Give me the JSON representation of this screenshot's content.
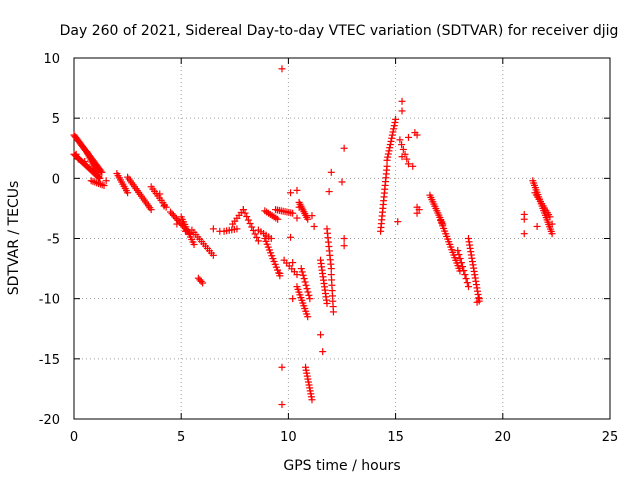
{
  "chart_data": {
    "type": "scatter",
    "title": "Day 260 of 2021, Sidereal Day-to-day VTEC variation (SDTVAR) for receiver djig",
    "xlabel": "GPS time / hours",
    "ylabel": "SDTVAR / TECUs",
    "xlim": [
      0,
      25
    ],
    "ylim": [
      -20,
      10
    ],
    "xticks": [
      0,
      5,
      10,
      15,
      20,
      25
    ],
    "yticks": [
      -20,
      -15,
      -10,
      -5,
      0,
      5,
      10
    ],
    "grid": true,
    "marker": "+",
    "color": "#ff0000",
    "series": [
      {
        "name": "SDTVAR",
        "segments": [
          {
            "x0": 0.0,
            "x1": 1.3,
            "y0": 3.6,
            "y1": 0.5,
            "n": 30
          },
          {
            "x0": 0.0,
            "x1": 1.2,
            "y0": 2.0,
            "y1": 0.0,
            "n": 24
          },
          {
            "x0": 0.6,
            "x1": 1.2,
            "y0": 2.2,
            "y1": 0.0,
            "n": 14
          },
          {
            "x0": 0.8,
            "x1": 1.4,
            "y0": -0.2,
            "y1": -0.6,
            "n": 8
          },
          {
            "x0": 2.0,
            "x1": 2.5,
            "y0": 0.4,
            "y1": -1.2,
            "n": 10
          },
          {
            "x0": 2.5,
            "x1": 3.6,
            "y0": 0.1,
            "y1": -2.6,
            "n": 18
          },
          {
            "x0": 3.6,
            "x1": 4.3,
            "y0": -0.7,
            "y1": -2.4,
            "n": 10
          },
          {
            "x0": 4.5,
            "x1": 5.4,
            "y0": -2.8,
            "y1": -4.6,
            "n": 14
          },
          {
            "x0": 5.0,
            "x1": 5.6,
            "y0": -3.2,
            "y1": -5.5,
            "n": 12
          },
          {
            "x0": 5.5,
            "x1": 6.5,
            "y0": -4.3,
            "y1": -6.4,
            "n": 12
          },
          {
            "x0": 5.8,
            "x1": 6.0,
            "y0": -8.3,
            "y1": -8.7,
            "n": 4
          },
          {
            "x0": 7.0,
            "x1": 7.6,
            "y0": -4.4,
            "y1": -4.2,
            "n": 6
          },
          {
            "x0": 7.4,
            "x1": 7.9,
            "y0": -3.8,
            "y1": -2.6,
            "n": 6
          },
          {
            "x0": 7.9,
            "x1": 8.6,
            "y0": -2.6,
            "y1": -5.2,
            "n": 10
          },
          {
            "x0": 8.6,
            "x1": 9.2,
            "y0": -4.3,
            "y1": -5.0,
            "n": 6
          },
          {
            "x0": 8.9,
            "x1": 9.6,
            "y0": -5.0,
            "y1": -8.1,
            "n": 14
          },
          {
            "x0": 8.9,
            "x1": 9.5,
            "y0": -2.7,
            "y1": -3.4,
            "n": 8
          },
          {
            "x0": 9.4,
            "x1": 10.2,
            "y0": -2.6,
            "y1": -2.9,
            "n": 10
          },
          {
            "x0": 9.8,
            "x1": 10.4,
            "y0": -6.8,
            "y1": -8.0,
            "n": 6
          },
          {
            "x0": 10.4,
            "x1": 10.9,
            "y0": -9.0,
            "y1": -11.5,
            "n": 12
          },
          {
            "x0": 10.5,
            "x1": 10.9,
            "y0": -2.0,
            "y1": -3.4,
            "n": 10
          },
          {
            "x0": 10.6,
            "x1": 11.0,
            "y0": -7.5,
            "y1": -10.0,
            "n": 10
          },
          {
            "x0": 10.8,
            "x1": 11.1,
            "y0": -15.7,
            "y1": -18.4,
            "n": 12
          },
          {
            "x0": 11.5,
            "x1": 11.8,
            "y0": -6.8,
            "y1": -10.4,
            "n": 14
          },
          {
            "x0": 11.8,
            "x1": 12.0,
            "y0": -4.2,
            "y1": -7.5,
            "n": 10
          },
          {
            "x0": 12.0,
            "x1": 12.1,
            "y0": -8.0,
            "y1": -11.1,
            "n": 8
          },
          {
            "x0": 14.3,
            "x1": 14.6,
            "y0": -4.4,
            "y1": 1.0,
            "n": 18
          },
          {
            "x0": 14.6,
            "x1": 15.0,
            "y0": 1.5,
            "y1": 4.9,
            "n": 14
          },
          {
            "x0": 15.2,
            "x1": 15.6,
            "y0": 3.2,
            "y1": 1.2,
            "n": 6
          },
          {
            "x0": 16.6,
            "x1": 17.2,
            "y0": -1.4,
            "y1": -3.8,
            "n": 14
          },
          {
            "x0": 17.1,
            "x1": 18.0,
            "y0": -3.5,
            "y1": -7.7,
            "n": 20
          },
          {
            "x0": 17.9,
            "x1": 18.4,
            "y0": -6.0,
            "y1": -9.0,
            "n": 10
          },
          {
            "x0": 18.4,
            "x1": 18.9,
            "y0": -5.0,
            "y1": -10.2,
            "n": 20
          },
          {
            "x0": 21.4,
            "x1": 22.3,
            "y0": -0.2,
            "y1": -4.6,
            "n": 24
          },
          {
            "x0": 21.5,
            "x1": 22.2,
            "y0": -1.2,
            "y1": -3.2,
            "n": 12
          }
        ],
        "points": [
          [
            0.1,
            2.0
          ],
          [
            0.2,
            1.6
          ],
          [
            0.5,
            1.4
          ],
          [
            1.5,
            -0.2
          ],
          [
            4.0,
            -1.3
          ],
          [
            4.2,
            -2.3
          ],
          [
            4.8,
            -3.8
          ],
          [
            5.2,
            -4.4
          ],
          [
            6.5,
            -4.2
          ],
          [
            6.8,
            -4.4
          ],
          [
            9.7,
            9.1
          ],
          [
            9.7,
            -15.7
          ],
          [
            9.7,
            -18.8
          ],
          [
            9.6,
            -7.9
          ],
          [
            10.1,
            -1.2
          ],
          [
            10.1,
            -4.9
          ],
          [
            10.2,
            -7.0
          ],
          [
            10.2,
            -10.0
          ],
          [
            10.4,
            -1.0
          ],
          [
            10.4,
            -3.3
          ],
          [
            10.5,
            -2.4
          ],
          [
            11.1,
            -3.1
          ],
          [
            11.2,
            -4.0
          ],
          [
            11.5,
            -13.0
          ],
          [
            11.6,
            -14.4
          ],
          [
            11.9,
            -1.1
          ],
          [
            12.0,
            0.5
          ],
          [
            12.5,
            -0.3
          ],
          [
            12.6,
            2.5
          ],
          [
            12.6,
            -5.0
          ],
          [
            12.6,
            -5.6
          ],
          [
            15.1,
            -3.6
          ],
          [
            15.3,
            6.4
          ],
          [
            15.3,
            5.6
          ],
          [
            15.3,
            1.8
          ],
          [
            15.6,
            3.4
          ],
          [
            15.8,
            1.0
          ],
          [
            15.9,
            3.8
          ],
          [
            16.0,
            3.6
          ],
          [
            16.0,
            -2.4
          ],
          [
            16.0,
            -2.9
          ],
          [
            16.1,
            -2.6
          ],
          [
            18.8,
            -10.3
          ],
          [
            18.9,
            -10.0
          ],
          [
            21.0,
            -3.0
          ],
          [
            21.0,
            -4.6
          ],
          [
            21.0,
            -3.4
          ],
          [
            21.6,
            -4.0
          ],
          [
            22.3,
            -3.8
          ]
        ]
      }
    ]
  }
}
